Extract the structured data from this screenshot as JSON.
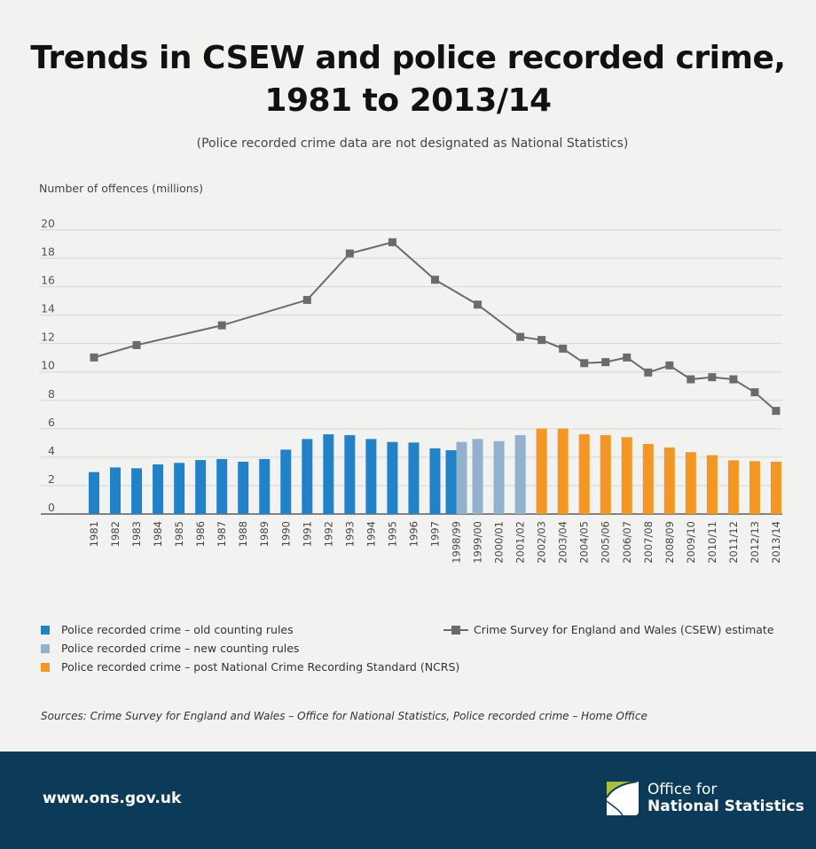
{
  "header": {
    "title_line1": "Trends in CSEW and police recorded crime,",
    "title_line2": "1981 to 2013/14",
    "subtitle": "(Police recorded crime data are not designated as National Statistics)"
  },
  "chart_data": {
    "type": "bar+line",
    "ylabel": "Number of offences (millions)",
    "ylim": [
      0,
      20
    ],
    "yticks": [
      0,
      2,
      4,
      6,
      8,
      10,
      12,
      14,
      16,
      18,
      20
    ],
    "grid": true,
    "legend_placement": "bottom",
    "categories": [
      "1981",
      "1982",
      "1983",
      "1984",
      "1985",
      "1986",
      "1987",
      "1988",
      "1989",
      "1990",
      "1991",
      "1992",
      "1993",
      "1994",
      "1995",
      "1996",
      "1997",
      "1998/99",
      "1999/00",
      "2000/01",
      "2001/02",
      "2002/03",
      "2003/04",
      "2004/05",
      "2005/06",
      "2006/07",
      "2007/08",
      "2008/09",
      "2009/10",
      "2010/11",
      "2011/12",
      "2012/13",
      "2013/14"
    ],
    "series": [
      {
        "name": "Police recorded crime – old counting rules",
        "type": "bar",
        "color": "#2282c8",
        "values": [
          2.95,
          3.28,
          3.22,
          3.49,
          3.6,
          3.8,
          3.87,
          3.68,
          3.87,
          4.53,
          5.28,
          5.61,
          5.55,
          5.28,
          5.07,
          5.03,
          4.62,
          4.49,
          null,
          null,
          null,
          null,
          null,
          null,
          null,
          null,
          null,
          null,
          null,
          null,
          null,
          null,
          null
        ]
      },
      {
        "name": "Police recorded crime – new counting rules",
        "type": "bar",
        "color": "#92b1cc",
        "values": [
          null,
          null,
          null,
          null,
          null,
          null,
          null,
          null,
          null,
          null,
          null,
          null,
          null,
          null,
          null,
          null,
          null,
          5.07,
          5.28,
          5.13,
          5.55,
          null,
          null,
          null,
          null,
          null,
          null,
          null,
          null,
          null,
          null,
          null,
          null
        ]
      },
      {
        "name": "Police recorded crime – post National Crime Recording Standard (NCRS)",
        "type": "bar",
        "color": "#f39623",
        "values": [
          null,
          null,
          null,
          null,
          null,
          null,
          null,
          null,
          null,
          null,
          null,
          null,
          null,
          null,
          null,
          null,
          null,
          null,
          null,
          null,
          null,
          6.01,
          6.01,
          5.61,
          5.55,
          5.41,
          4.93,
          4.68,
          4.35,
          4.14,
          3.78,
          3.72,
          3.68
        ]
      },
      {
        "name": "Crime Survey for England and Wales (CSEW) estimate",
        "type": "line",
        "color": "#6b6b6b",
        "values": [
          11.02,
          null,
          11.89,
          null,
          null,
          null,
          13.28,
          null,
          null,
          null,
          15.07,
          null,
          18.34,
          null,
          19.13,
          null,
          16.49,
          null,
          14.74,
          null,
          12.47,
          12.25,
          11.64,
          10.62,
          10.69,
          11.02,
          9.96,
          10.46,
          9.48,
          9.63,
          9.48,
          8.57,
          7.26
        ]
      }
    ]
  },
  "sources": "Sources: Crime Survey for England and Wales – Office for National Statistics, Police recorded crime – Home Office",
  "footer": {
    "url": "www.ons.gov.uk",
    "logo_line1": "Office for",
    "logo_line2": "National Statistics",
    "color": "#0c3b5a"
  }
}
